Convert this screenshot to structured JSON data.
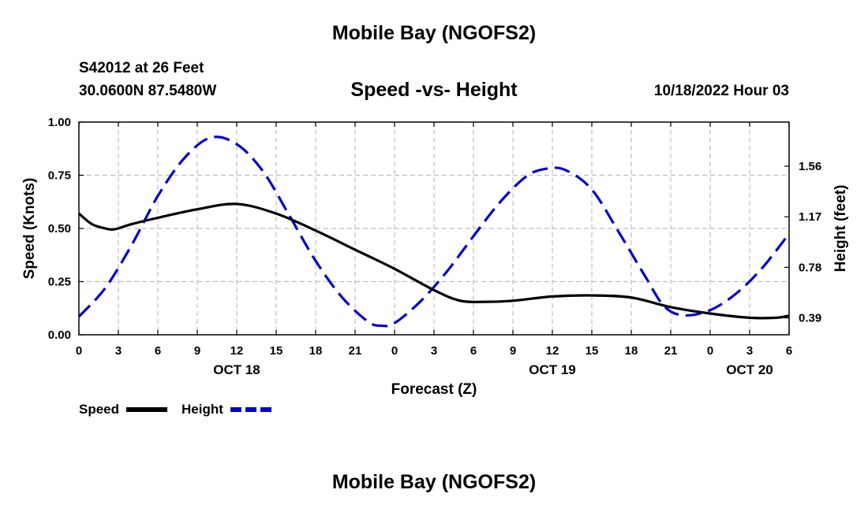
{
  "page": {
    "title_top": "Mobile Bay (NGOFS2)",
    "title_bottom": "Mobile Bay (NGOFS2)",
    "station": "S42012 at 26 Feet",
    "coords": "30.0600N  87.5480W",
    "subtitle": "Speed -vs- Height",
    "datetime": "10/18/2022 Hour 03"
  },
  "chart_data": {
    "type": "line",
    "title": "Speed -vs- Height",
    "xlabel": "Forecast (Z)",
    "ylabel": "Speed (Knots)",
    "y2label": "Height (feet)",
    "xlim": [
      0,
      54
    ],
    "ylim": [
      0,
      1
    ],
    "y2lim": [
      0.26,
      1.9
    ],
    "x_ticks": [
      0,
      3,
      6,
      9,
      12,
      15,
      18,
      21,
      24,
      27,
      30,
      33,
      36,
      39,
      42,
      45,
      48,
      51,
      54
    ],
    "x_tick_labels": [
      "0",
      "3",
      "6",
      "9",
      "12",
      "15",
      "18",
      "21",
      "0",
      "3",
      "6",
      "9",
      "12",
      "15",
      "18",
      "21",
      "0",
      "3",
      "6"
    ],
    "date_labels": [
      {
        "x": 12,
        "label": "OCT 18"
      },
      {
        "x": 36,
        "label": "OCT 19"
      },
      {
        "x": 51,
        "label": "OCT 20"
      }
    ],
    "y_ticks": [
      0,
      0.25,
      0.5,
      0.75,
      1.0
    ],
    "y_tick_labels": [
      "0.00",
      "0.25",
      "0.50",
      "0.75",
      "1.00"
    ],
    "y2_ticks": [
      0.39,
      0.78,
      1.17,
      1.56
    ],
    "y2_tick_labels": [
      "0.39",
      "0.78",
      "1.17",
      "1.56"
    ],
    "grid": true,
    "series": [
      {
        "name": "Speed",
        "axis": "left",
        "color": "#000000",
        "dash": "solid",
        "x": [
          0,
          1,
          2,
          2.5,
          3,
          4,
          6,
          9,
          12,
          15,
          18,
          21,
          24,
          27,
          29,
          31,
          33,
          36,
          39,
          42,
          45,
          48,
          51,
          53,
          54
        ],
        "y": [
          0.57,
          0.52,
          0.5,
          0.495,
          0.5,
          0.52,
          0.55,
          0.59,
          0.615,
          0.57,
          0.49,
          0.4,
          0.31,
          0.21,
          0.16,
          0.155,
          0.16,
          0.18,
          0.185,
          0.175,
          0.13,
          0.1,
          0.08,
          0.08,
          0.09
        ]
      },
      {
        "name": "Height",
        "axis": "right",
        "color": "#0000cc",
        "dash": "dashed",
        "x": [
          0,
          2,
          4,
          6,
          8,
          10,
          12,
          14,
          16,
          18,
          20,
          22,
          23,
          24,
          26,
          28,
          30,
          32,
          34,
          35.5,
          37,
          39,
          41,
          43,
          44.5,
          46,
          48,
          50,
          52,
          54
        ],
        "y": [
          0.4,
          0.62,
          0.95,
          1.33,
          1.62,
          1.78,
          1.73,
          1.52,
          1.18,
          0.83,
          0.55,
          0.36,
          0.33,
          0.35,
          0.52,
          0.75,
          1.02,
          1.28,
          1.48,
          1.54,
          1.53,
          1.38,
          1.06,
          0.72,
          0.48,
          0.41,
          0.45,
          0.58,
          0.78,
          1.04
        ]
      }
    ],
    "legend": {
      "position": "bottom-left",
      "entries": [
        {
          "label": "Speed",
          "color": "#000000",
          "dash": "solid"
        },
        {
          "label": "Height",
          "color": "#0000cc",
          "dash": "dashed"
        }
      ]
    }
  }
}
